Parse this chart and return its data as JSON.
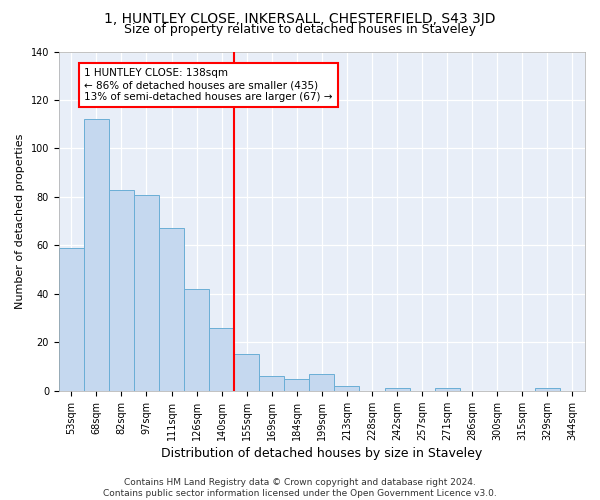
{
  "title1": "1, HUNTLEY CLOSE, INKERSALL, CHESTERFIELD, S43 3JD",
  "title2": "Size of property relative to detached houses in Staveley",
  "xlabel": "Distribution of detached houses by size in Staveley",
  "ylabel": "Number of detached properties",
  "categories": [
    "53sqm",
    "68sqm",
    "82sqm",
    "97sqm",
    "111sqm",
    "126sqm",
    "140sqm",
    "155sqm",
    "169sqm",
    "184sqm",
    "199sqm",
    "213sqm",
    "228sqm",
    "242sqm",
    "257sqm",
    "271sqm",
    "286sqm",
    "300sqm",
    "315sqm",
    "329sqm",
    "344sqm"
  ],
  "values": [
    59,
    112,
    83,
    81,
    67,
    42,
    26,
    15,
    6,
    5,
    7,
    2,
    0,
    1,
    0,
    1,
    0,
    0,
    0,
    1,
    0
  ],
  "bar_color": "#c5d8ef",
  "bar_edge_color": "#6aaed6",
  "highlight_index": 6,
  "annotation_text": "1 HUNTLEY CLOSE: 138sqm\n← 86% of detached houses are smaller (435)\n13% of semi-detached houses are larger (67) →",
  "annotation_box_color": "white",
  "annotation_box_edge": "red",
  "vline_color": "red",
  "ylim": [
    0,
    140
  ],
  "footnote": "Contains HM Land Registry data © Crown copyright and database right 2024.\nContains public sector information licensed under the Open Government Licence v3.0.",
  "title1_fontsize": 10,
  "title2_fontsize": 9,
  "xlabel_fontsize": 9,
  "ylabel_fontsize": 8,
  "tick_fontsize": 7,
  "annot_fontsize": 7.5,
  "footnote_fontsize": 6.5
}
